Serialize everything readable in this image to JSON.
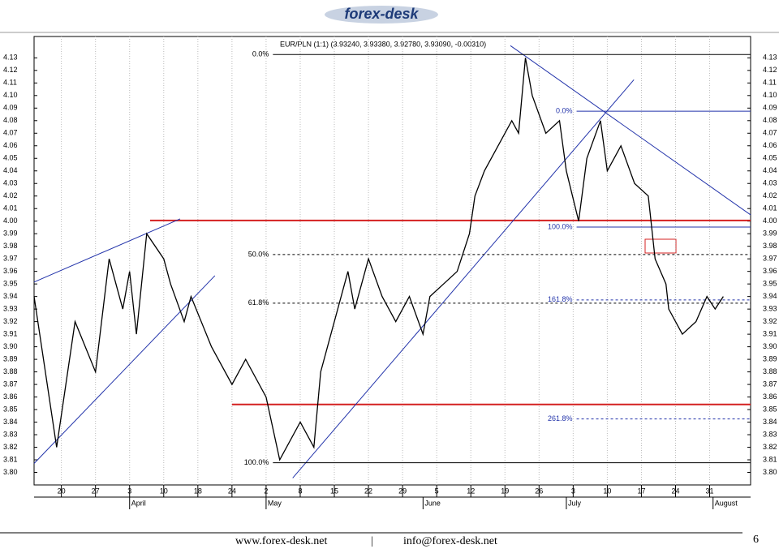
{
  "header": {
    "logo": "forex-desk"
  },
  "chart_data": {
    "type": "line",
    "title": "EUR/PLN (1:1) (3.93240, 3.93380, 3.92780, 3.93090, -0.00310)",
    "x": [
      0,
      3.3,
      6,
      9,
      11,
      13,
      14,
      15,
      16.5,
      19,
      20,
      22,
      23,
      26,
      29,
      31,
      34,
      36,
      39,
      41,
      42,
      43,
      46,
      47,
      49,
      51,
      53,
      55,
      57,
      58,
      60,
      62,
      63.8,
      64.6,
      66,
      70,
      71,
      72,
      73,
      75,
      77,
      78,
      79.8,
      81,
      83,
      84,
      86,
      88,
      90,
      91,
      92.6,
      93,
      95,
      97,
      98.6,
      99.8,
      101
    ],
    "values": [
      3.94,
      3.82,
      3.92,
      3.88,
      3.97,
      3.93,
      3.96,
      3.91,
      3.99,
      3.97,
      3.95,
      3.92,
      3.94,
      3.9,
      3.87,
      3.89,
      3.86,
      3.81,
      3.84,
      3.82,
      3.88,
      3.9,
      3.96,
      3.93,
      3.97,
      3.94,
      3.92,
      3.94,
      3.91,
      3.94,
      3.95,
      3.96,
      3.99,
      4.02,
      4.04,
      4.08,
      4.07,
      4.13,
      4.1,
      4.07,
      4.08,
      4.04,
      4.0,
      4.05,
      4.08,
      4.04,
      4.06,
      4.03,
      4.02,
      3.97,
      3.95,
      3.93,
      3.91,
      3.92,
      3.94,
      3.93,
      3.94
    ],
    "color": "#000000",
    "xlim": [
      0,
      105
    ],
    "xticks": [
      {
        "value": 4,
        "label": "20"
      },
      {
        "value": 9,
        "label": "27"
      },
      {
        "value": 14,
        "label": "3"
      },
      {
        "value": 19,
        "label": "10"
      },
      {
        "value": 24,
        "label": "18"
      },
      {
        "value": 29,
        "label": "24"
      },
      {
        "value": 34,
        "label": "2"
      },
      {
        "value": 39,
        "label": "8"
      },
      {
        "value": 44,
        "label": "15"
      },
      {
        "value": 49,
        "label": "22"
      },
      {
        "value": 54,
        "label": "29"
      },
      {
        "value": 59,
        "label": "5"
      },
      {
        "value": 64,
        "label": "12"
      },
      {
        "value": 69,
        "label": "19"
      },
      {
        "value": 74,
        "label": "26"
      },
      {
        "value": 79,
        "label": "3"
      },
      {
        "value": 84,
        "label": "10"
      },
      {
        "value": 89,
        "label": "17"
      },
      {
        "value": 94,
        "label": "24"
      },
      {
        "value": 99,
        "label": "31"
      }
    ],
    "month_ticks": [
      {
        "value": 14,
        "label": "April"
      },
      {
        "value": 34,
        "label": "May"
      },
      {
        "value": 57,
        "label": "June"
      },
      {
        "value": 78,
        "label": "July"
      },
      {
        "value": 99.5,
        "label": "August"
      }
    ],
    "ylim": [
      3.79,
      4.147
    ],
    "yticks": [
      {
        "value": 3.8,
        "label": "3.80"
      },
      3.81,
      3.82,
      3.83,
      3.84,
      3.85,
      3.86,
      3.87,
      3.88,
      3.89,
      {
        "value": 3.9,
        "label": "3.90"
      },
      3.91,
      3.92,
      3.93,
      3.94,
      3.95,
      3.96,
      3.97,
      3.98,
      3.99,
      {
        "value": 4.0,
        "label": "4.00"
      },
      4.01,
      4.02,
      4.03,
      4.04,
      4.05,
      4.06,
      4.07,
      4.08,
      4.09,
      {
        "value": 4.1,
        "label": "4.10"
      },
      4.11,
      4.12,
      4.13
    ],
    "grid": true,
    "hlines": [
      {
        "color": "#d42020",
        "start": 17,
        "value": 4.0005
      },
      {
        "color": "#d42020",
        "start": 29,
        "value": 3.8541
      }
    ],
    "trendlines": [
      {
        "color": "#2233aa",
        "points": [
          0,
          3.9515,
          21.4,
          4.0018
        ]
      },
      {
        "color": "#2233aa",
        "points": [
          0,
          3.8071,
          26.5,
          3.9566
        ]
      },
      {
        "color": "#2233aa",
        "points": [
          37.9,
          3.7955,
          87.9,
          4.1126
        ]
      },
      {
        "color": "#2233aa",
        "points": [
          69.8,
          4.1397,
          105,
          4.005
        ]
      }
    ],
    "fibs": [
      {
        "color": "#000000",
        "start": 35,
        "levels": [
          {
            "value": 4.1326,
            "label": "0.0%",
            "dashed": false
          },
          {
            "value": 3.9734,
            "label": "50.0%",
            "dashed": true
          },
          {
            "value": 3.9347,
            "label": "61.8%",
            "dashed": true
          },
          {
            "value": 3.8077,
            "label": "100.0%",
            "dashed": false
          }
        ]
      },
      {
        "color": "#2233aa",
        "start": 79.5,
        "levels": [
          {
            "value": 4.0875,
            "label": "0.0%",
            "dashed": false
          },
          {
            "value": 3.9953,
            "label": "100.0%",
            "dashed": false
          },
          {
            "value": 3.9373,
            "label": "161.8%",
            "dashed": true
          },
          {
            "value": 3.8425,
            "label": "261.8%",
            "dashed": true
          }
        ]
      }
    ]
  },
  "footer": {
    "website": "www.forex-desk.net",
    "separator": "|",
    "email": "info@forex-desk.net",
    "page": "6"
  }
}
